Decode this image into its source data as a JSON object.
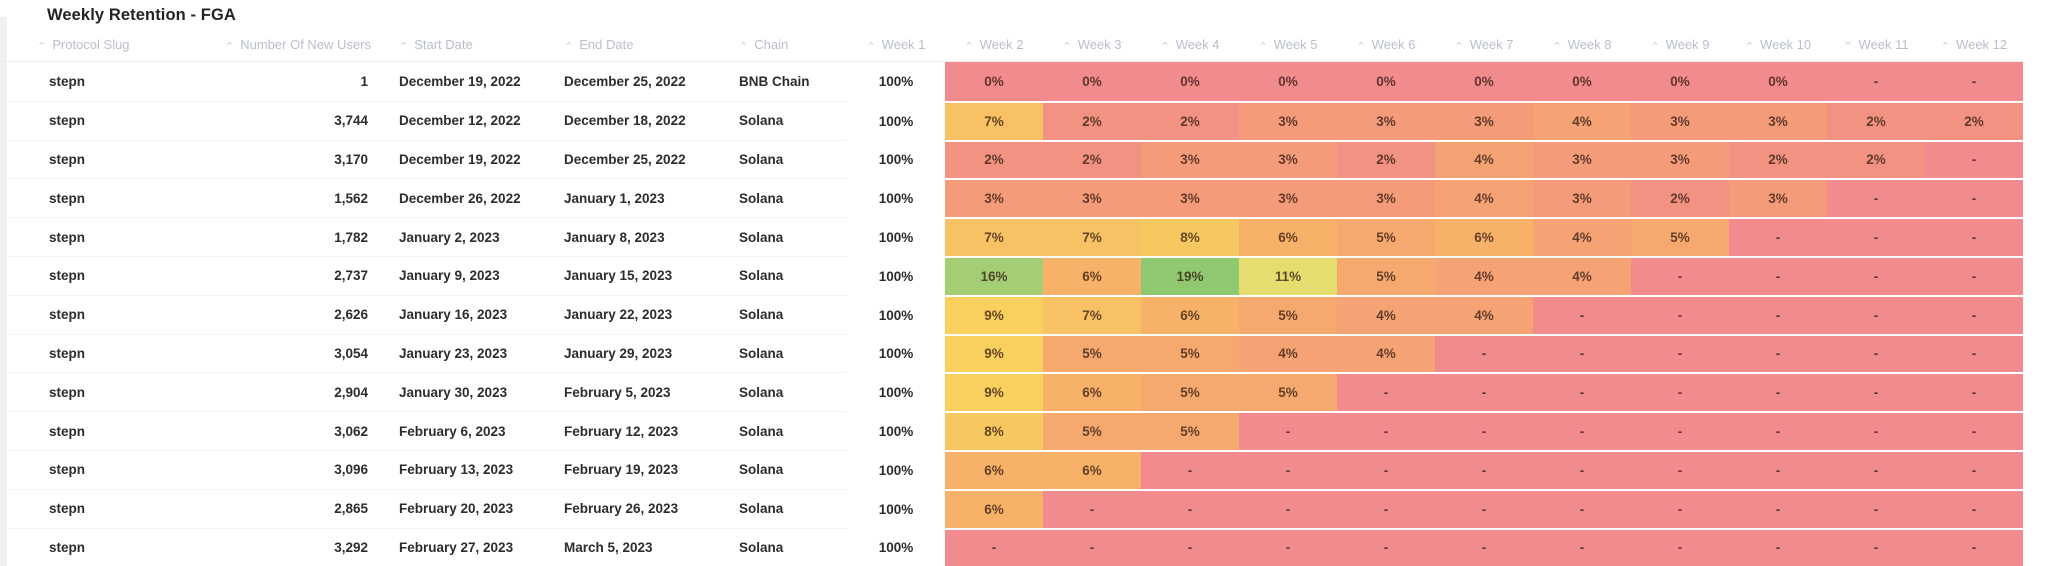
{
  "title": "Weekly Retention - FGA",
  "table": {
    "columns": [
      {
        "key": "protocol_slug",
        "label": "Protocol Slug"
      },
      {
        "key": "new_users",
        "label": "Number Of New Users"
      },
      {
        "key": "start_date",
        "label": "Start Date"
      },
      {
        "key": "end_date",
        "label": "End Date"
      },
      {
        "key": "chain",
        "label": "Chain"
      }
    ]
  },
  "heatmap_colors": {
    "100%": "#ffffff",
    "19%": "#8fc870",
    "16%": "#a4cd74",
    "11%": "#e6dd6f",
    "9%": "#f9cf5e",
    "8%": "#f8c860",
    "7%": "#f8c163",
    "6%": "#f7b168",
    "5%": "#f6a96e",
    "4%": "#f5a274",
    "3%": "#f49b79",
    "2%": "#f29282",
    "0%": "#f18b8e",
    "-": "#f18b8e"
  },
  "chart_data": {
    "type": "heatmap",
    "title": "Weekly Retention - FGA",
    "x_labels": [
      "Week 1",
      "Week 2",
      "Week 3",
      "Week 4",
      "Week 5",
      "Week 6",
      "Week 7",
      "Week 8",
      "Week 9",
      "Week 10",
      "Week 11",
      "Week 12"
    ],
    "legend": "retention percentage, red (low) to yellow to green (high); '-' = no data yet",
    "rows": [
      {
        "protocol_slug": "stepn",
        "new_users": "1",
        "start_date": "December 19, 2022",
        "end_date": "December 25, 2022",
        "chain": "BNB Chain",
        "weeks": [
          "100%",
          "0%",
          "0%",
          "0%",
          "0%",
          "0%",
          "0%",
          "0%",
          "0%",
          "0%",
          "-",
          "-"
        ]
      },
      {
        "protocol_slug": "stepn",
        "new_users": "3,744",
        "start_date": "December 12, 2022",
        "end_date": "December 18, 2022",
        "chain": "Solana",
        "weeks": [
          "100%",
          "7%",
          "2%",
          "2%",
          "3%",
          "3%",
          "3%",
          "4%",
          "3%",
          "3%",
          "2%",
          "2%"
        ]
      },
      {
        "protocol_slug": "stepn",
        "new_users": "3,170",
        "start_date": "December 19, 2022",
        "end_date": "December 25, 2022",
        "chain": "Solana",
        "weeks": [
          "100%",
          "2%",
          "2%",
          "3%",
          "3%",
          "2%",
          "4%",
          "3%",
          "3%",
          "2%",
          "2%",
          "-"
        ]
      },
      {
        "protocol_slug": "stepn",
        "new_users": "1,562",
        "start_date": "December 26, 2022",
        "end_date": "January 1, 2023",
        "chain": "Solana",
        "weeks": [
          "100%",
          "3%",
          "3%",
          "3%",
          "3%",
          "3%",
          "4%",
          "3%",
          "2%",
          "3%",
          "-",
          "-"
        ]
      },
      {
        "protocol_slug": "stepn",
        "new_users": "1,782",
        "start_date": "January 2, 2023",
        "end_date": "January 8, 2023",
        "chain": "Solana",
        "weeks": [
          "100%",
          "7%",
          "7%",
          "8%",
          "6%",
          "5%",
          "6%",
          "4%",
          "5%",
          "-",
          "-",
          "-"
        ]
      },
      {
        "protocol_slug": "stepn",
        "new_users": "2,737",
        "start_date": "January 9, 2023",
        "end_date": "January 15, 2023",
        "chain": "Solana",
        "weeks": [
          "100%",
          "16%",
          "6%",
          "19%",
          "11%",
          "5%",
          "4%",
          "4%",
          "-",
          "-",
          "-",
          "-"
        ]
      },
      {
        "protocol_slug": "stepn",
        "new_users": "2,626",
        "start_date": "January 16, 2023",
        "end_date": "January 22, 2023",
        "chain": "Solana",
        "weeks": [
          "100%",
          "9%",
          "7%",
          "6%",
          "5%",
          "4%",
          "4%",
          "-",
          "-",
          "-",
          "-",
          "-"
        ]
      },
      {
        "protocol_slug": "stepn",
        "new_users": "3,054",
        "start_date": "January 23, 2023",
        "end_date": "January 29, 2023",
        "chain": "Solana",
        "weeks": [
          "100%",
          "9%",
          "5%",
          "5%",
          "4%",
          "4%",
          "-",
          "-",
          "-",
          "-",
          "-",
          "-"
        ]
      },
      {
        "protocol_slug": "stepn",
        "new_users": "2,904",
        "start_date": "January 30, 2023",
        "end_date": "February 5, 2023",
        "chain": "Solana",
        "weeks": [
          "100%",
          "9%",
          "6%",
          "5%",
          "5%",
          "-",
          "-",
          "-",
          "-",
          "-",
          "-",
          "-"
        ]
      },
      {
        "protocol_slug": "stepn",
        "new_users": "3,062",
        "start_date": "February 6, 2023",
        "end_date": "February 12, 2023",
        "chain": "Solana",
        "weeks": [
          "100%",
          "8%",
          "5%",
          "5%",
          "-",
          "-",
          "-",
          "-",
          "-",
          "-",
          "-",
          "-"
        ]
      },
      {
        "protocol_slug": "stepn",
        "new_users": "3,096",
        "start_date": "February 13, 2023",
        "end_date": "February 19, 2023",
        "chain": "Solana",
        "weeks": [
          "100%",
          "6%",
          "6%",
          "-",
          "-",
          "-",
          "-",
          "-",
          "-",
          "-",
          "-",
          "-"
        ]
      },
      {
        "protocol_slug": "stepn",
        "new_users": "2,865",
        "start_date": "February 20, 2023",
        "end_date": "February 26, 2023",
        "chain": "Solana",
        "weeks": [
          "100%",
          "6%",
          "-",
          "-",
          "-",
          "-",
          "-",
          "-",
          "-",
          "-",
          "-",
          "-"
        ]
      },
      {
        "protocol_slug": "stepn",
        "new_users": "3,292",
        "start_date": "February 27, 2023",
        "end_date": "March 5, 2023",
        "chain": "Solana",
        "weeks": [
          "100%",
          "-",
          "-",
          "-",
          "-",
          "-",
          "-",
          "-",
          "-",
          "-",
          "-",
          "-"
        ]
      }
    ]
  }
}
